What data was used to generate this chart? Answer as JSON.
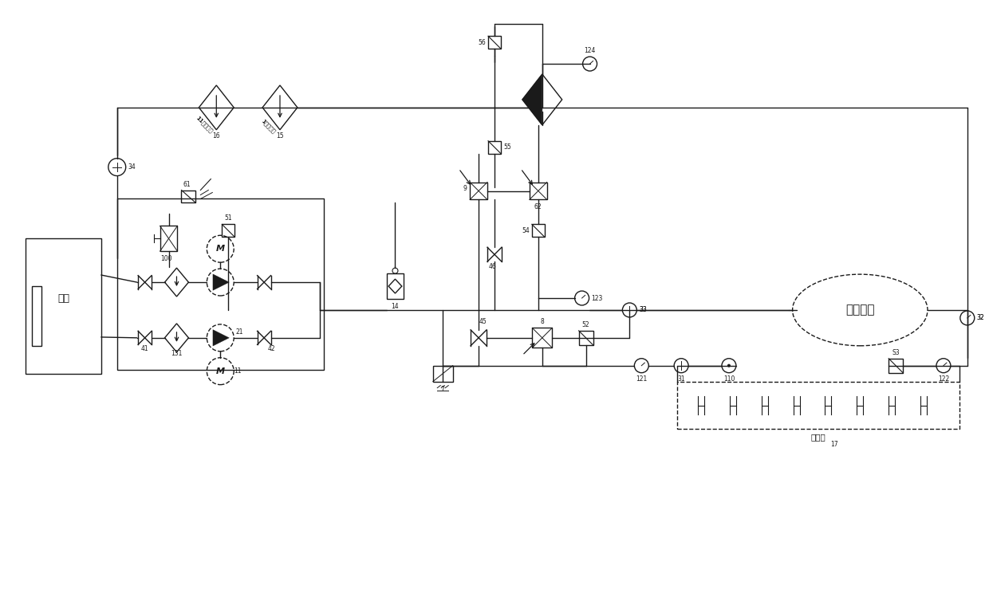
{
  "bg_color": "#ffffff",
  "lc": "#1a1a1a",
  "lw": 1.0,
  "figsize": [
    12.4,
    7.54
  ],
  "dpi": 100,
  "xlim": [
    0,
    124
  ],
  "ylim": [
    0,
    75.4
  ]
}
